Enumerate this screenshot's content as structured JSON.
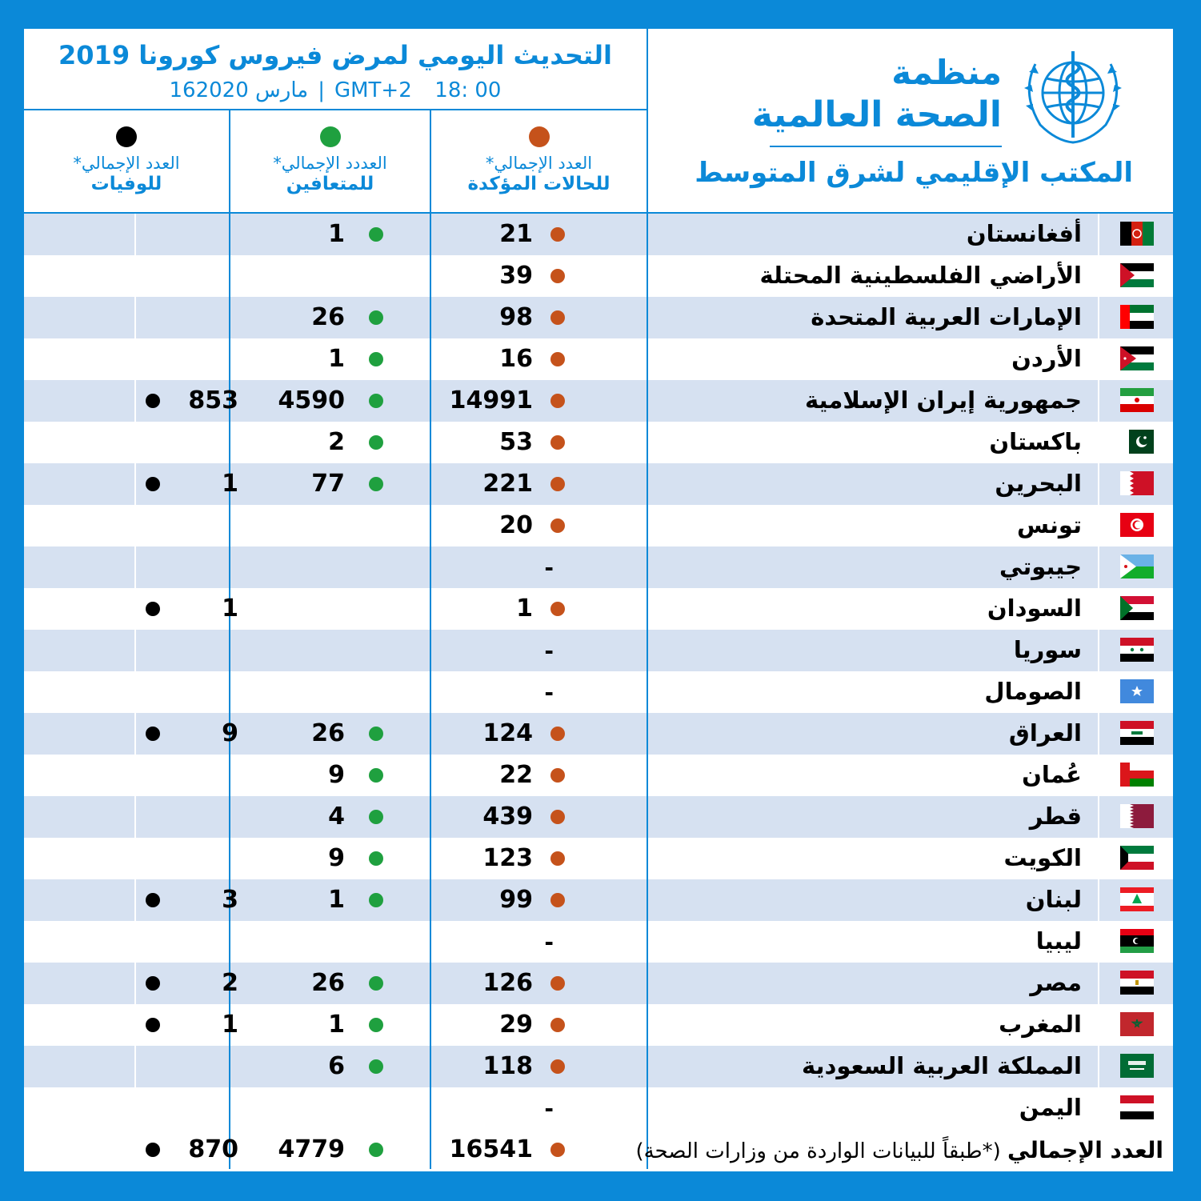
{
  "header": {
    "title": "التحديث اليومي لمرض فيروس كورونا 2019",
    "time": "18: 00",
    "timezone": "GMT+2",
    "date": "16مارس 2020",
    "separator": "|"
  },
  "who": {
    "name_line1": "منظمة",
    "name_line2": "الصحة العالمية",
    "region": "المكتب الإقليمي لشرق المتوسط",
    "emblem_icon": "who-emblem-icon"
  },
  "columns": {
    "confirmed": {
      "line1": "العدد الإجمالي*",
      "line2": "للحالات المؤكدة",
      "color": "#c5521b"
    },
    "recovered": {
      "line1": "العددد الإجمالي*",
      "line2": "للمتعافين",
      "color": "#1fa03f"
    },
    "deaths": {
      "line1": "العدد الإجمالي*",
      "line2": "للوفيات",
      "color": "#000000"
    }
  },
  "countries": [
    {
      "name": "أفغانستان",
      "flag": "afghanistan",
      "confirmed": "21",
      "recovered": "1",
      "deaths": ""
    },
    {
      "name": "الأراضي الفلسطينية المحتلة",
      "flag": "palestine",
      "confirmed": "39",
      "recovered": "",
      "deaths": ""
    },
    {
      "name": "الإمارات العربية المتحدة",
      "flag": "uae",
      "confirmed": "98",
      "recovered": "26",
      "deaths": ""
    },
    {
      "name": "الأردن",
      "flag": "jordan",
      "confirmed": "16",
      "recovered": "1",
      "deaths": ""
    },
    {
      "name": "جمهورية إيران الإسلامية",
      "flag": "iran",
      "confirmed": "14991",
      "recovered": "4590",
      "deaths": "853"
    },
    {
      "name": "باكستان",
      "flag": "pakistan",
      "confirmed": "53",
      "recovered": "2",
      "deaths": ""
    },
    {
      "name": "البحرين",
      "flag": "bahrain",
      "confirmed": "221",
      "recovered": "77",
      "deaths": "1"
    },
    {
      "name": "تونس",
      "flag": "tunisia",
      "confirmed": "20",
      "recovered": "",
      "deaths": ""
    },
    {
      "name": "جيبوتي",
      "flag": "djibouti",
      "confirmed": "-",
      "recovered": "",
      "deaths": ""
    },
    {
      "name": "السودان",
      "flag": "sudan",
      "confirmed": "1",
      "recovered": "",
      "deaths": "1"
    },
    {
      "name": "سوريا",
      "flag": "syria",
      "confirmed": "-",
      "recovered": "",
      "deaths": ""
    },
    {
      "name": "الصومال",
      "flag": "somalia",
      "confirmed": "-",
      "recovered": "",
      "deaths": ""
    },
    {
      "name": "العراق",
      "flag": "iraq",
      "confirmed": "124",
      "recovered": "26",
      "deaths": "9"
    },
    {
      "name": "عُمان",
      "flag": "oman",
      "confirmed": "22",
      "recovered": "9",
      "deaths": ""
    },
    {
      "name": "قطر",
      "flag": "qatar",
      "confirmed": "439",
      "recovered": "4",
      "deaths": ""
    },
    {
      "name": "الكويت",
      "flag": "kuwait",
      "confirmed": "123",
      "recovered": "9",
      "deaths": ""
    },
    {
      "name": "لبنان",
      "flag": "lebanon",
      "confirmed": "99",
      "recovered": "1",
      "deaths": "3"
    },
    {
      "name": "ليبيا",
      "flag": "libya",
      "confirmed": "-",
      "recovered": "",
      "deaths": ""
    },
    {
      "name": "مصر",
      "flag": "egypt",
      "confirmed": "126",
      "recovered": "26",
      "deaths": "2"
    },
    {
      "name": "المغرب",
      "flag": "morocco",
      "confirmed": "29",
      "recovered": "1",
      "deaths": "1"
    },
    {
      "name": "المملكة العربية السعودية",
      "flag": "saudi-arabia",
      "confirmed": "118",
      "recovered": "6",
      "deaths": ""
    },
    {
      "name": "اليمن",
      "flag": "yemen",
      "confirmed": "-",
      "recovered": "",
      "deaths": ""
    }
  ],
  "total": {
    "label": "العدد الإجمالي",
    "note": "(*طبقاً للبيانات الواردة من وزارات الصحة)",
    "confirmed": "16541",
    "recovered": "4779",
    "deaths": "870"
  }
}
